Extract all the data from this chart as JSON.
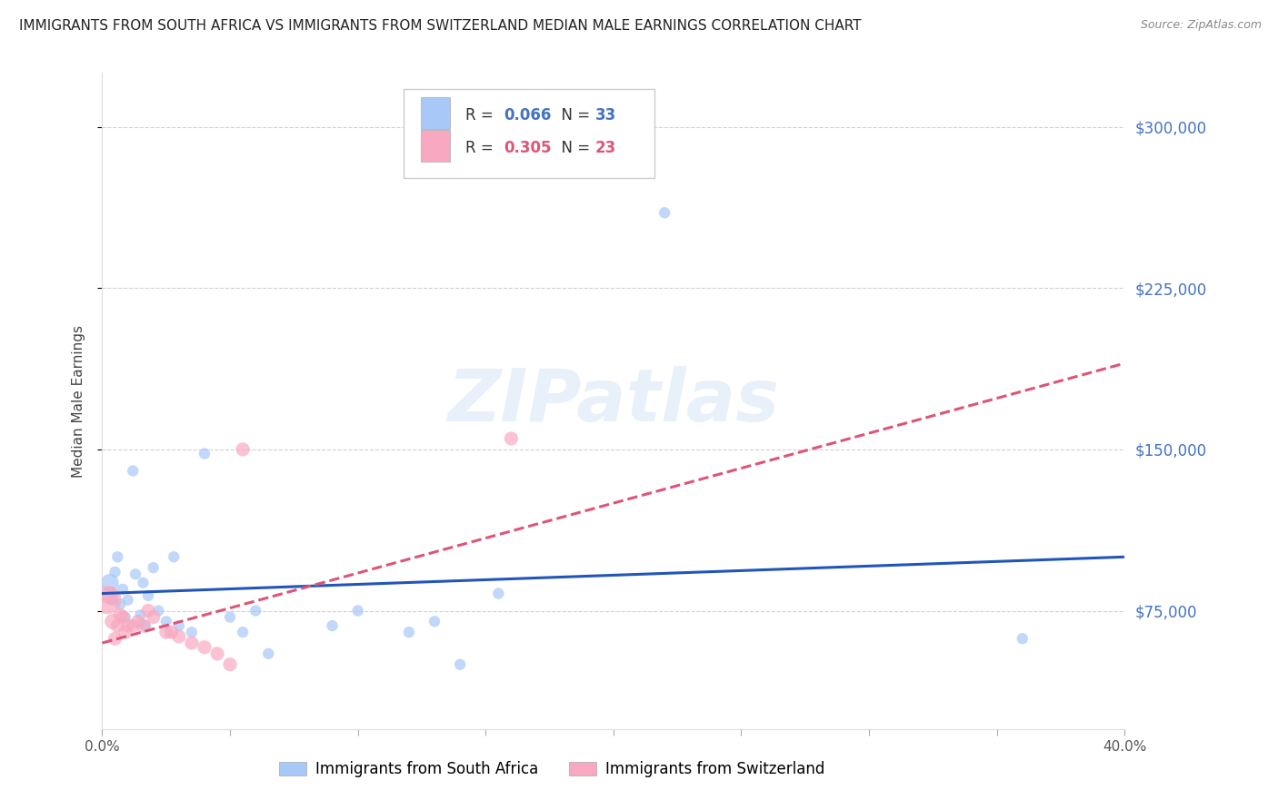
{
  "title": "IMMIGRANTS FROM SOUTH AFRICA VS IMMIGRANTS FROM SWITZERLAND MEDIAN MALE EARNINGS CORRELATION CHART",
  "source": "Source: ZipAtlas.com",
  "ylabel": "Median Male Earnings",
  "xlim": [
    0.0,
    0.4
  ],
  "ylim": [
    20000,
    325000
  ],
  "yticks": [
    75000,
    150000,
    225000,
    300000
  ],
  "xticks": [
    0.0,
    0.05,
    0.1,
    0.15,
    0.2,
    0.25,
    0.3,
    0.35,
    0.4
  ],
  "color_sa": "#a8c8f8",
  "color_sw": "#f8a8c0",
  "color_sa_line": "#2255bb",
  "color_sw_line": "#dd5577",
  "R_sa": 0.066,
  "N_sa": 33,
  "R_sw": 0.305,
  "N_sw": 23,
  "watermark": "ZIPatlas",
  "legend_sa": "Immigrants from South Africa",
  "legend_sw": "Immigrants from Switzerland",
  "sa_x": [
    0.003,
    0.004,
    0.005,
    0.006,
    0.007,
    0.008,
    0.009,
    0.01,
    0.012,
    0.013,
    0.015,
    0.016,
    0.017,
    0.018,
    0.02,
    0.022,
    0.025,
    0.028,
    0.03,
    0.035,
    0.04,
    0.05,
    0.055,
    0.06,
    0.065,
    0.09,
    0.1,
    0.12,
    0.13,
    0.14,
    0.155,
    0.22,
    0.36
  ],
  "sa_y": [
    88000,
    80000,
    93000,
    100000,
    78000,
    85000,
    72000,
    80000,
    140000,
    92000,
    73000,
    88000,
    68000,
    82000,
    95000,
    75000,
    70000,
    100000,
    68000,
    65000,
    148000,
    72000,
    65000,
    75000,
    55000,
    68000,
    75000,
    65000,
    70000,
    50000,
    83000,
    260000,
    62000
  ],
  "sa_sizes": [
    200,
    80,
    80,
    80,
    80,
    80,
    80,
    80,
    80,
    80,
    80,
    80,
    80,
    80,
    80,
    80,
    80,
    80,
    80,
    80,
    80,
    80,
    80,
    80,
    80,
    80,
    80,
    80,
    80,
    80,
    80,
    80,
    80
  ],
  "sw_x": [
    0.002,
    0.003,
    0.004,
    0.005,
    0.006,
    0.007,
    0.008,
    0.009,
    0.01,
    0.012,
    0.014,
    0.016,
    0.018,
    0.02,
    0.025,
    0.027,
    0.03,
    0.035,
    0.04,
    0.045,
    0.05,
    0.055,
    0.16
  ],
  "sw_y": [
    80000,
    82000,
    70000,
    62000,
    68000,
    73000,
    72000,
    65000,
    68000,
    68000,
    70000,
    68000,
    75000,
    72000,
    65000,
    65000,
    63000,
    60000,
    58000,
    55000,
    50000,
    150000,
    155000
  ],
  "sw_sizes": [
    500,
    200,
    150,
    120,
    120,
    120,
    120,
    120,
    120,
    120,
    120,
    120,
    120,
    120,
    120,
    120,
    120,
    120,
    120,
    120,
    120,
    120,
    120
  ]
}
